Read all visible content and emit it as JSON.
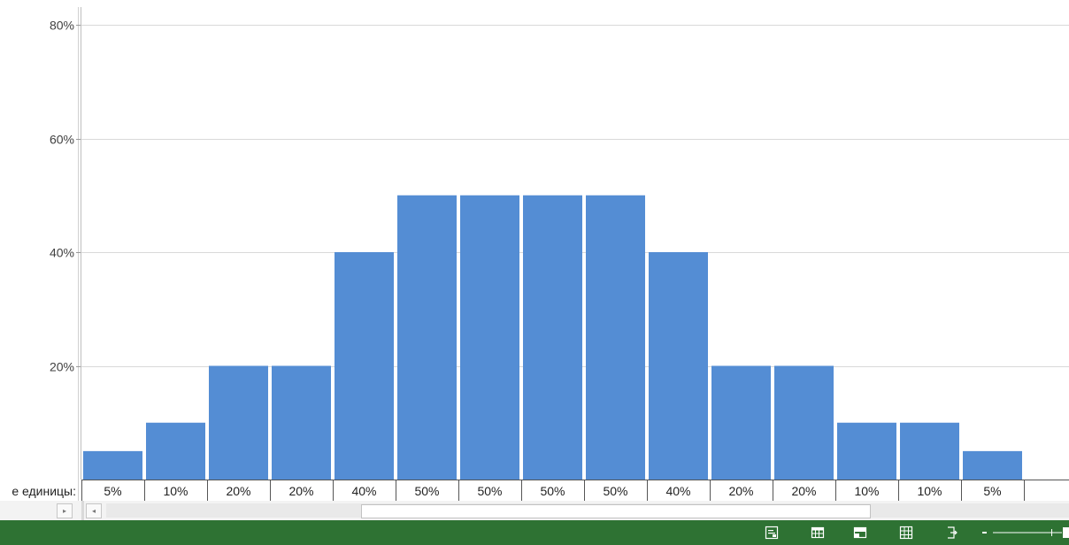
{
  "chart_data": {
    "type": "bar",
    "y_tick_labels": [
      "80%",
      "60%",
      "40%",
      "20%"
    ],
    "y_ticks": [
      0.8,
      0.6,
      0.4,
      0.2
    ],
    "ylim": [
      0,
      0.8
    ],
    "values": [
      0.05,
      0.1,
      0.2,
      0.2,
      0.4,
      0.5,
      0.5,
      0.5,
      0.5,
      0.4,
      0.2,
      0.2,
      0.1,
      0.1,
      0.05
    ],
    "data_labels": [
      "5%",
      "10%",
      "20%",
      "20%",
      "40%",
      "50%",
      "50%",
      "50%",
      "50%",
      "40%",
      "20%",
      "20%",
      "10%",
      "10%",
      "5%"
    ],
    "table_row_header": "е единицы:",
    "bar_color": "#548dd4",
    "gridlines": true,
    "legend": "none"
  },
  "colors": {
    "status_bar": "#2e7233",
    "gridline": "#d9d9d9"
  },
  "icons": {
    "scroll_left": "▸",
    "scroll_right": "◂",
    "status": [
      "macro-record-icon",
      "normal-view-icon",
      "page-layout-view-icon",
      "page-break-view-icon",
      "zoom-fit-icon"
    ]
  }
}
